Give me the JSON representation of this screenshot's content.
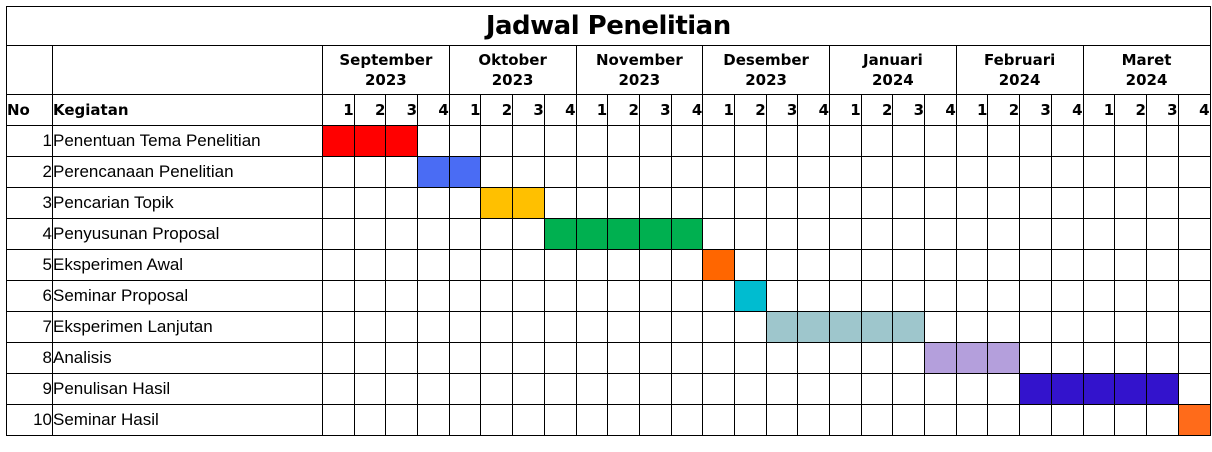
{
  "title": "Jadwal Penelitian",
  "headers": {
    "no": "No",
    "activity": "Kegiatan"
  },
  "months": [
    {
      "name": "September",
      "year": "2023"
    },
    {
      "name": "Oktober",
      "year": "2023"
    },
    {
      "name": "November",
      "year": "2023"
    },
    {
      "name": "Desember",
      "year": "2023"
    },
    {
      "name": "Januari",
      "year": "2024"
    },
    {
      "name": "Februari",
      "year": "2024"
    },
    {
      "name": "Maret",
      "year": "2024"
    }
  ],
  "weeks": [
    "1",
    "2",
    "3",
    "4"
  ],
  "activities": [
    {
      "no": "1",
      "name": "Penentuan Tema Penelitian",
      "start_week": 1,
      "end_week": 3,
      "color": "#ff0000"
    },
    {
      "no": "2",
      "name": "Perencanaan Penelitian",
      "start_week": 4,
      "end_week": 5,
      "color": "#4a6cf4"
    },
    {
      "no": "3",
      "name": "Pencarian Topik",
      "start_week": 6,
      "end_week": 7,
      "color": "#ffc000"
    },
    {
      "no": "4",
      "name": "Penyusunan Proposal",
      "start_week": 8,
      "end_week": 12,
      "color": "#00b050"
    },
    {
      "no": "5",
      "name": "Eksperimen Awal",
      "start_week": 13,
      "end_week": 13,
      "color": "#ff6600"
    },
    {
      "no": "6",
      "name": "Seminar Proposal",
      "start_week": 14,
      "end_week": 14,
      "color": "#00bcd0"
    },
    {
      "no": "7",
      "name": "Eksperimen Lanjutan",
      "start_week": 15,
      "end_week": 19,
      "color": "#9ec6cc"
    },
    {
      "no": "8",
      "name": "Analisis",
      "start_week": 20,
      "end_week": 22,
      "color": "#b49fdc"
    },
    {
      "no": "9",
      "name": "Penulisan Hasil",
      "start_week": 23,
      "end_week": 27,
      "color": "#3313cc"
    },
    {
      "no": "10",
      "name": "Seminar Hasil",
      "start_week": 28,
      "end_week": 28,
      "color": "#ff6b1a"
    }
  ]
}
